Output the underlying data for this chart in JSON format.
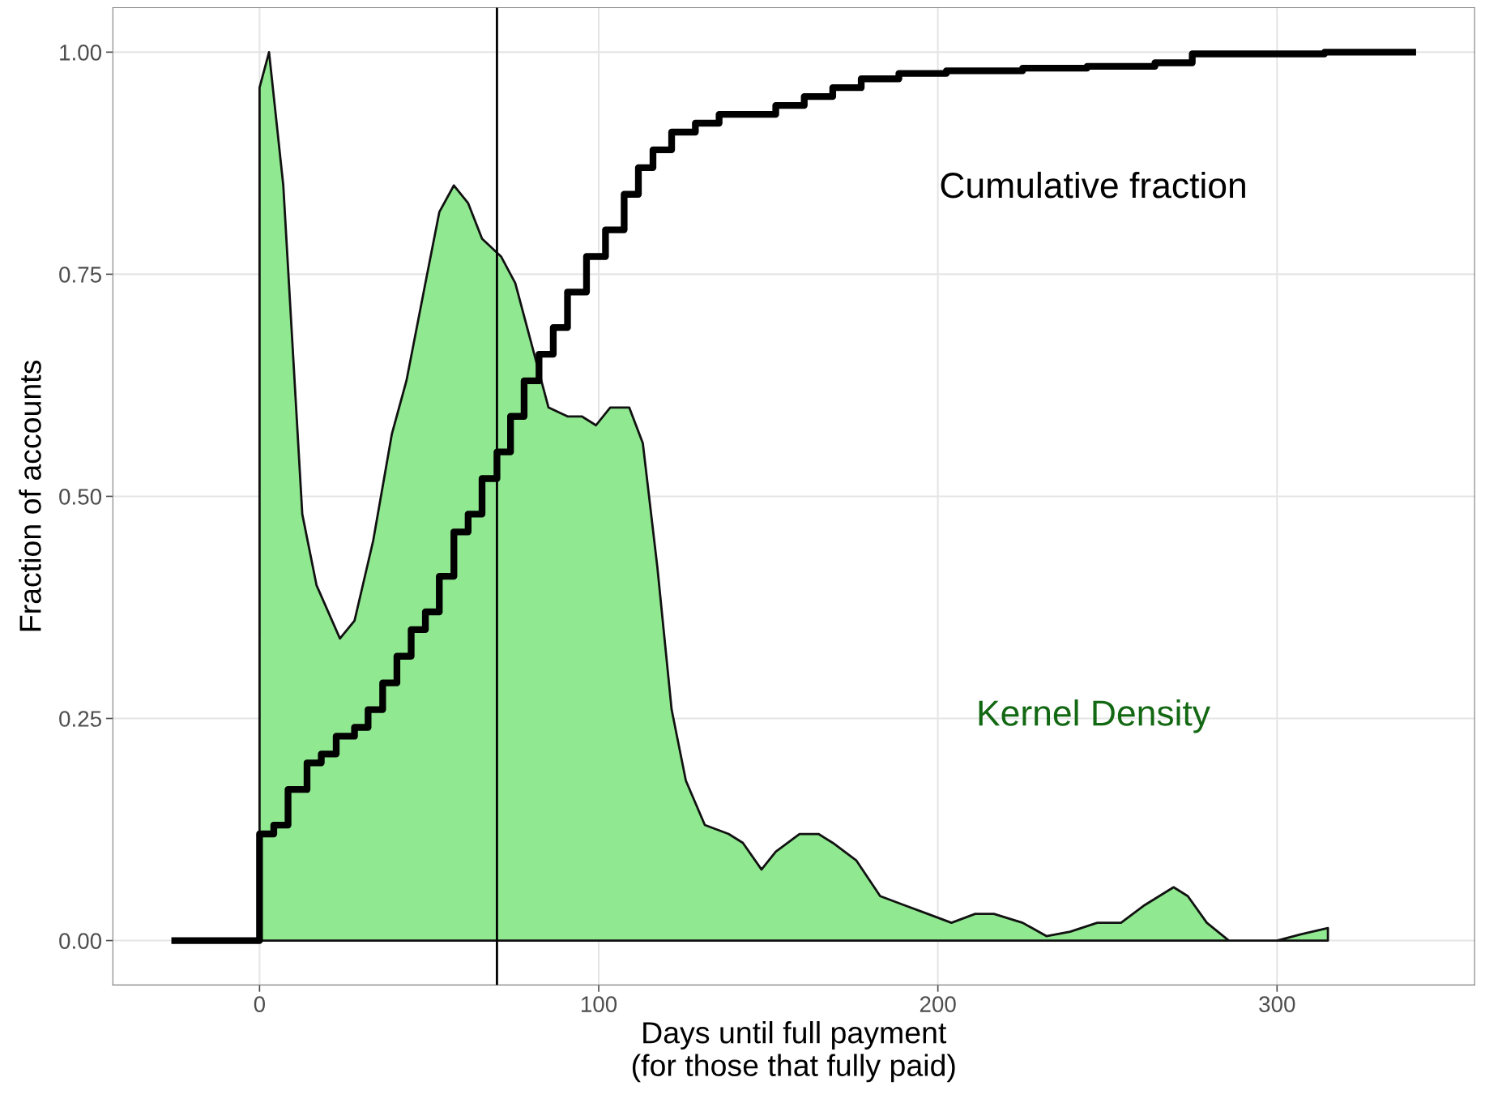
{
  "chart_data": {
    "type": "area",
    "xlabel": "Days until full payment\n(for those that fully paid)",
    "ylabel": "Fraction of accounts",
    "xlim": [
      -43.25,
      358.25
    ],
    "ylim": [
      -0.05,
      1.05
    ],
    "xticks": [
      0,
      100,
      200,
      300
    ],
    "yticks": [
      {
        "value": 0,
        "label": "0.00"
      },
      {
        "value": 0.25,
        "label": "0.25"
      },
      {
        "value": 0.5,
        "label": "0.50"
      },
      {
        "value": 0.75,
        "label": "0.75"
      },
      {
        "value": 1,
        "label": "1.00"
      }
    ],
    "grid": true,
    "legend": false,
    "ref_lines": [
      {
        "axis": "x",
        "value": 70,
        "color": "#000000"
      }
    ],
    "series": [
      {
        "color": "#90e890",
        "x": [
          0,
          2.8,
          7,
          12.6,
          16.8,
          23.7,
          28,
          33.5,
          39,
          43.3,
          48.9,
          53,
          57.3,
          61.5,
          65.6,
          71.2,
          75.4,
          79.6,
          85.2,
          90.8,
          95,
          99.2,
          103.4,
          109,
          113,
          117.3,
          121.5,
          125.7,
          131.3,
          138.3,
          142.5,
          148,
          152.2,
          159.2,
          164.8,
          169,
          176,
          183,
          190,
          197,
          204,
          211,
          216.5,
          225,
          232,
          239,
          247,
          254,
          261,
          269.5,
          273.7,
          279.3,
          285.8,
          300,
          307,
          315
        ],
        "values": [
          0.96,
          1.0,
          0.85,
          0.48,
          0.4,
          0.34,
          0.36,
          0.45,
          0.57,
          0.63,
          0.74,
          0.82,
          0.85,
          0.83,
          0.79,
          0.77,
          0.74,
          0.68,
          0.6,
          0.59,
          0.59,
          0.58,
          0.6,
          0.6,
          0.56,
          0.42,
          0.26,
          0.18,
          0.13,
          0.12,
          0.11,
          0.08,
          0.1,
          0.12,
          0.12,
          0.11,
          0.09,
          0.05,
          0.04,
          0.03,
          0.02,
          0.03,
          0.03,
          0.02,
          0.005,
          0.01,
          0.02,
          0.02,
          0.04,
          0.06,
          0.05,
          0.02,
          0,
          0,
          0.007,
          0.014
        ]
      },
      {
        "type": "step",
        "color": "#000000",
        "x": [
          -25,
          0,
          0,
          4.2,
          8.4,
          14,
          18.2,
          22.6,
          28,
          32,
          36.3,
          40.5,
          44.7,
          48.9,
          53,
          57.3,
          61.5,
          65.6,
          70,
          74,
          78,
          82.4,
          86.6,
          90.8,
          96.4,
          102,
          107.5,
          111.7,
          116,
          121.5,
          128.5,
          135.5,
          143.9,
          152.2,
          160.6,
          169,
          177.4,
          188.5,
          202.5,
          225,
          244,
          264,
          275,
          314,
          340
        ],
        "values": [
          0,
          0,
          0.12,
          0.13,
          0.17,
          0.2,
          0.21,
          0.23,
          0.24,
          0.26,
          0.29,
          0.32,
          0.35,
          0.37,
          0.41,
          0.46,
          0.48,
          0.52,
          0.55,
          0.59,
          0.63,
          0.66,
          0.69,
          0.73,
          0.77,
          0.8,
          0.84,
          0.87,
          0.89,
          0.91,
          0.92,
          0.93,
          0.93,
          0.94,
          0.95,
          0.96,
          0.97,
          0.976,
          0.979,
          0.982,
          0.984,
          0.988,
          0.998,
          1.0,
          1.0
        ]
      }
    ],
    "annotations": [
      "Cumulative fraction",
      "Kernel Density"
    ]
  }
}
